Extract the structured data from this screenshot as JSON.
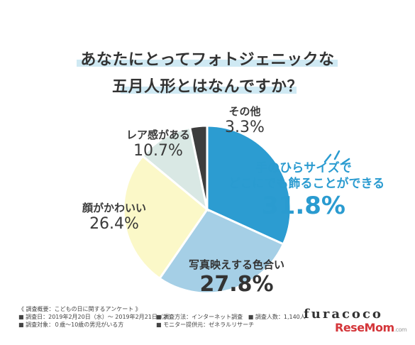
{
  "title": {
    "line1": "あなたにとってフォトジェニックな",
    "line2": "五月人形とはなんですか？"
  },
  "chart_data": {
    "type": "pie",
    "title": "あなたにとってフォトジェニックな五月人形とはなんですか？",
    "slices": [
      {
        "label": "手のひらサイズでどこにでも飾ることができる",
        "label_lines": [
          "手のひらサイズで",
          "どこにでも飾ることができる"
        ],
        "value": 31.8,
        "value_text": "31.8%",
        "color": "#2c9cd1"
      },
      {
        "label": "写真映えする色合い",
        "value": 27.8,
        "value_text": "27.8%",
        "color": "#a5cfe6"
      },
      {
        "label": "顔がかわいい",
        "value": 26.4,
        "value_text": "26.4%",
        "color": "#fbf8c8"
      },
      {
        "label": "レア感がある",
        "value": 10.7,
        "value_text": "10.7%",
        "color": "#d9e8e4"
      },
      {
        "label": "その他",
        "value": 3.3,
        "value_text": "3.3%",
        "color": "#3d3d3d"
      }
    ]
  },
  "notes": {
    "heading": "《 調査概要：こどもの日に関するアンケート 》",
    "date": "■ 調査日：2019年2月20日（水）～ 2019年2月21日（木）",
    "method": "■ 調査方法：インターネット調査",
    "count": "■ 調査人数：1,140人",
    "target": "■ 調査対象：０歳～10歳の男児がいる方",
    "provider": "■ モニター提供元：ゼネラルリサーチ"
  },
  "brand": "furacoco",
  "watermark": {
    "main": "ReseMom",
    "suffix": ".com"
  },
  "colors": {
    "highlight": "#cfe9f3",
    "accent": "#2a9bd0"
  }
}
